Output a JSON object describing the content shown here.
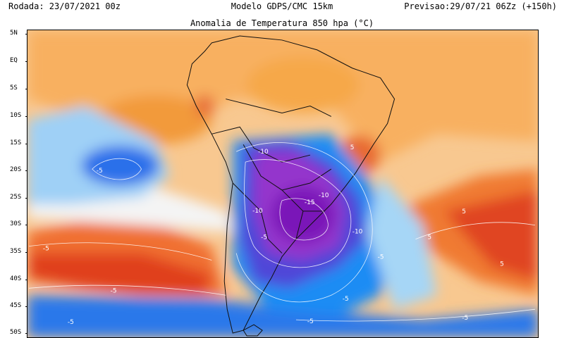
{
  "header": {
    "run_label": "Rodada: 23/07/2021 00z",
    "model_label": "Modelo GDPS/CMC 15km",
    "forecast_label": "Previsao:29/07/21 06Zz (+150h)"
  },
  "map": {
    "title": "Anomalia de Temperatura 850 hpa (°C)",
    "latitude_labels": [
      "5N",
      "EQ",
      "5S",
      "10S",
      "15S",
      "20S",
      "25S",
      "30S",
      "35S",
      "40S",
      "45S",
      "50S"
    ],
    "contour_labels": [
      "-10",
      "-5",
      "-10",
      "-15",
      "-10",
      "-10",
      "-5",
      "-5",
      "-5",
      "-5",
      "-5",
      "-5",
      "-5",
      "-5",
      "5",
      "5",
      "5",
      "5"
    ],
    "colors": {
      "cold_strong": "#8a20c8",
      "cold_medium": "#5a4ad8",
      "cold_light": "#1e90ff",
      "cool": "#a8d8f8",
      "neutral": "#f6f6f6",
      "warm": "#f8b860",
      "warm_strong": "#e84820"
    }
  }
}
